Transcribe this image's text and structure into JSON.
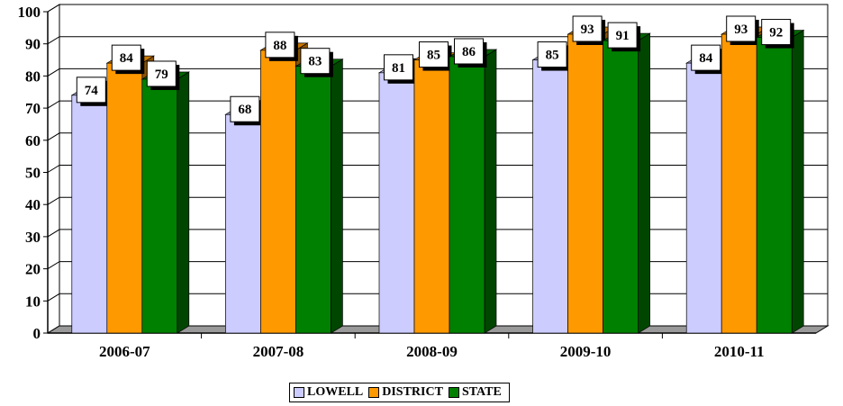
{
  "chart_data": {
    "type": "bar",
    "title": "",
    "xlabel": "",
    "ylabel": "",
    "ylim": [
      0,
      100
    ],
    "yticks": [
      0,
      10,
      20,
      30,
      40,
      50,
      60,
      70,
      80,
      90,
      100
    ],
    "grid": true,
    "legend_position": "bottom",
    "categories": [
      "2006-07",
      "2007-08",
      "2008-09",
      "2009-10",
      "2010-11"
    ],
    "series": [
      {
        "name": "LOWELL",
        "color": "#ccccff",
        "values": [
          74,
          68,
          81,
          85,
          84
        ]
      },
      {
        "name": "DISTRICT",
        "color": "#ff9900",
        "values": [
          84,
          88,
          85,
          93,
          93
        ]
      },
      {
        "name": "STATE",
        "color": "#008000",
        "values": [
          79,
          83,
          86,
          91,
          92
        ]
      }
    ]
  }
}
